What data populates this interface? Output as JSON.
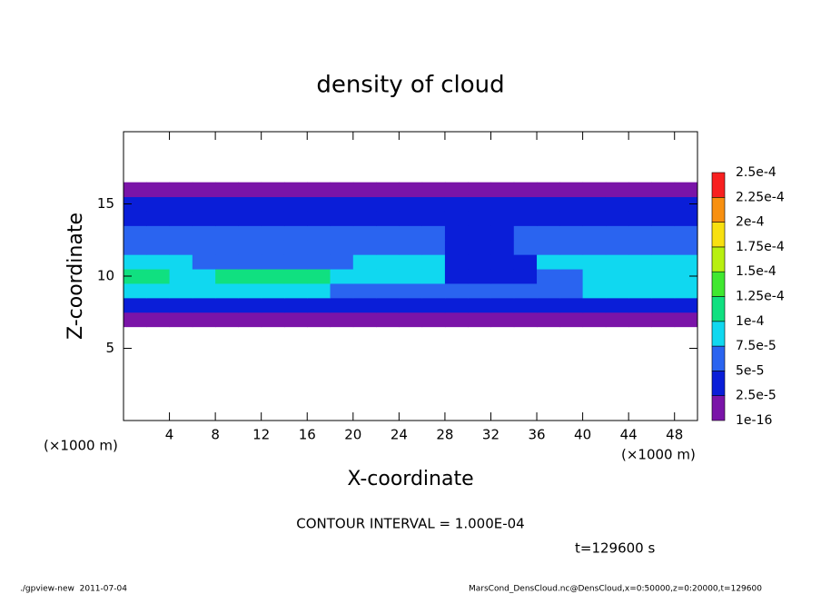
{
  "chart_data": {
    "type": "contour",
    "title": "density of cloud",
    "x_label": "X-coordinate",
    "y_label": "Z-coordinate",
    "x_unit_labels": [
      "(×1000 m)",
      "(×1000 m)"
    ],
    "annotation": "CONTOUR INTERVAL = 1.000E-04",
    "time_label": "t=129600 s",
    "footer_left": "./gpview-new  2011-07-04",
    "footer_right": "MarsCond_DensCloud.nc@DensCloud,x=0:50000,z=0:20000,t=129600",
    "xlim": [
      0,
      50
    ],
    "ylim": [
      0,
      20
    ],
    "xticks": [
      4,
      8,
      12,
      16,
      20,
      24,
      28,
      32,
      36,
      40,
      44,
      48
    ],
    "yticks": [
      5,
      10,
      15
    ],
    "x": [
      1,
      3,
      5,
      7,
      9,
      11,
      13,
      15,
      17,
      19,
      21,
      23,
      25,
      27,
      29,
      31,
      33,
      35,
      37,
      39,
      41,
      43,
      45,
      47,
      49
    ],
    "y": [
      7,
      8,
      9,
      10,
      11,
      12,
      13,
      14,
      15,
      16
    ],
    "values": [
      [
        1e-05,
        1e-05,
        1e-05,
        1e-05,
        1e-05,
        1e-05,
        1e-05,
        1e-05,
        1e-05,
        1e-05,
        1e-05,
        1e-05,
        1e-05,
        1e-05,
        1e-05,
        1e-05,
        1e-05,
        1e-05,
        1e-05,
        1e-05,
        1e-05,
        1e-05,
        1e-05,
        1e-05,
        1e-05
      ],
      [
        3e-05,
        3e-05,
        3e-05,
        3e-05,
        3e-05,
        3e-05,
        3e-05,
        3e-05,
        3e-05,
        3e-05,
        3e-05,
        3e-05,
        3e-05,
        3e-05,
        3e-05,
        3e-05,
        3e-05,
        3e-05,
        3e-05,
        3e-05,
        3e-05,
        3e-05,
        3e-05,
        3e-05,
        3e-05
      ],
      [
        8.5e-05,
        8.5e-05,
        8.5e-05,
        8.5e-05,
        8.5e-05,
        8.5e-05,
        8.5e-05,
        8.5e-05,
        8.5e-05,
        6e-05,
        6e-05,
        6e-05,
        6e-05,
        6e-05,
        6e-05,
        6e-05,
        6e-05,
        6e-05,
        6e-05,
        6e-05,
        8.5e-05,
        8.5e-05,
        8.5e-05,
        8.5e-05,
        8.5e-05
      ],
      [
        0.00011,
        0.00011,
        8.5e-05,
        8.5e-05,
        0.00011,
        0.00011,
        0.00011,
        0.00011,
        0.00011,
        8.5e-05,
        8.5e-05,
        8.5e-05,
        8.5e-05,
        8.5e-05,
        3e-05,
        3e-05,
        3e-05,
        3e-05,
        6e-05,
        6e-05,
        8.5e-05,
        8.5e-05,
        8.5e-05,
        8.5e-05,
        8.5e-05
      ],
      [
        8.5e-05,
        8.5e-05,
        8.5e-05,
        6e-05,
        6e-05,
        6e-05,
        6e-05,
        6e-05,
        6e-05,
        6e-05,
        8.5e-05,
        8.5e-05,
        8.5e-05,
        8.5e-05,
        3e-05,
        3e-05,
        3e-05,
        3e-05,
        8.5e-05,
        8.5e-05,
        8.5e-05,
        8.5e-05,
        8.5e-05,
        8.5e-05,
        8.5e-05
      ],
      [
        6e-05,
        6e-05,
        6e-05,
        6e-05,
        6e-05,
        6e-05,
        6e-05,
        6e-05,
        6e-05,
        6e-05,
        6e-05,
        6e-05,
        6e-05,
        6e-05,
        3e-05,
        3e-05,
        3e-05,
        6e-05,
        6e-05,
        6e-05,
        6e-05,
        6e-05,
        6e-05,
        6e-05,
        6e-05
      ],
      [
        6e-05,
        6e-05,
        6e-05,
        6e-05,
        6e-05,
        6e-05,
        6e-05,
        6e-05,
        6e-05,
        6e-05,
        6e-05,
        6e-05,
        6e-05,
        6e-05,
        3e-05,
        3e-05,
        3e-05,
        6e-05,
        6e-05,
        6e-05,
        6e-05,
        6e-05,
        6e-05,
        6e-05,
        6e-05
      ],
      [
        3e-05,
        3e-05,
        3e-05,
        3e-05,
        3e-05,
        3e-05,
        3e-05,
        3e-05,
        3e-05,
        3e-05,
        3e-05,
        3e-05,
        3e-05,
        3e-05,
        3e-05,
        3e-05,
        3e-05,
        3e-05,
        3e-05,
        3e-05,
        3e-05,
        3e-05,
        3e-05,
        3e-05,
        3e-05
      ],
      [
        3e-05,
        3e-05,
        3e-05,
        3e-05,
        3e-05,
        3e-05,
        3e-05,
        3e-05,
        3e-05,
        3e-05,
        3e-05,
        3e-05,
        3e-05,
        3e-05,
        3e-05,
        3e-05,
        3e-05,
        3e-05,
        3e-05,
        3e-05,
        3e-05,
        3e-05,
        3e-05,
        3e-05,
        3e-05
      ],
      [
        1e-05,
        1e-05,
        1e-05,
        1e-05,
        1e-05,
        1e-05,
        1e-05,
        1e-05,
        1e-05,
        1e-05,
        1e-05,
        1e-05,
        1e-05,
        1e-05,
        1e-05,
        1e-05,
        1e-05,
        1e-05,
        1e-05,
        1e-05,
        1e-05,
        1e-05,
        1e-05,
        1e-05,
        1e-05
      ]
    ],
    "colorbar": {
      "levels": [
        {
          "value": 1e-16,
          "label": "1e-16"
        },
        {
          "value": 2.5e-05,
          "label": "2.5e-5"
        },
        {
          "value": 5e-05,
          "label": "5e-5"
        },
        {
          "value": 7.5e-05,
          "label": "7.5e-5"
        },
        {
          "value": 0.0001,
          "label": "1e-4"
        },
        {
          "value": 0.000125,
          "label": "1.25e-4"
        },
        {
          "value": 0.00015,
          "label": "1.5e-4"
        },
        {
          "value": 0.000175,
          "label": "1.75e-4"
        },
        {
          "value": 0.0002,
          "label": "2e-4"
        },
        {
          "value": 0.000225,
          "label": "2.25e-4"
        },
        {
          "value": 0.00025,
          "label": "2.5e-4"
        }
      ],
      "colors": [
        "#7a14a8",
        "#0a1ed8",
        "#2a64f0",
        "#10d8f0",
        "#10e080",
        "#40e830",
        "#b8f010",
        "#f8e010",
        "#f89010",
        "#f82020"
      ]
    }
  }
}
